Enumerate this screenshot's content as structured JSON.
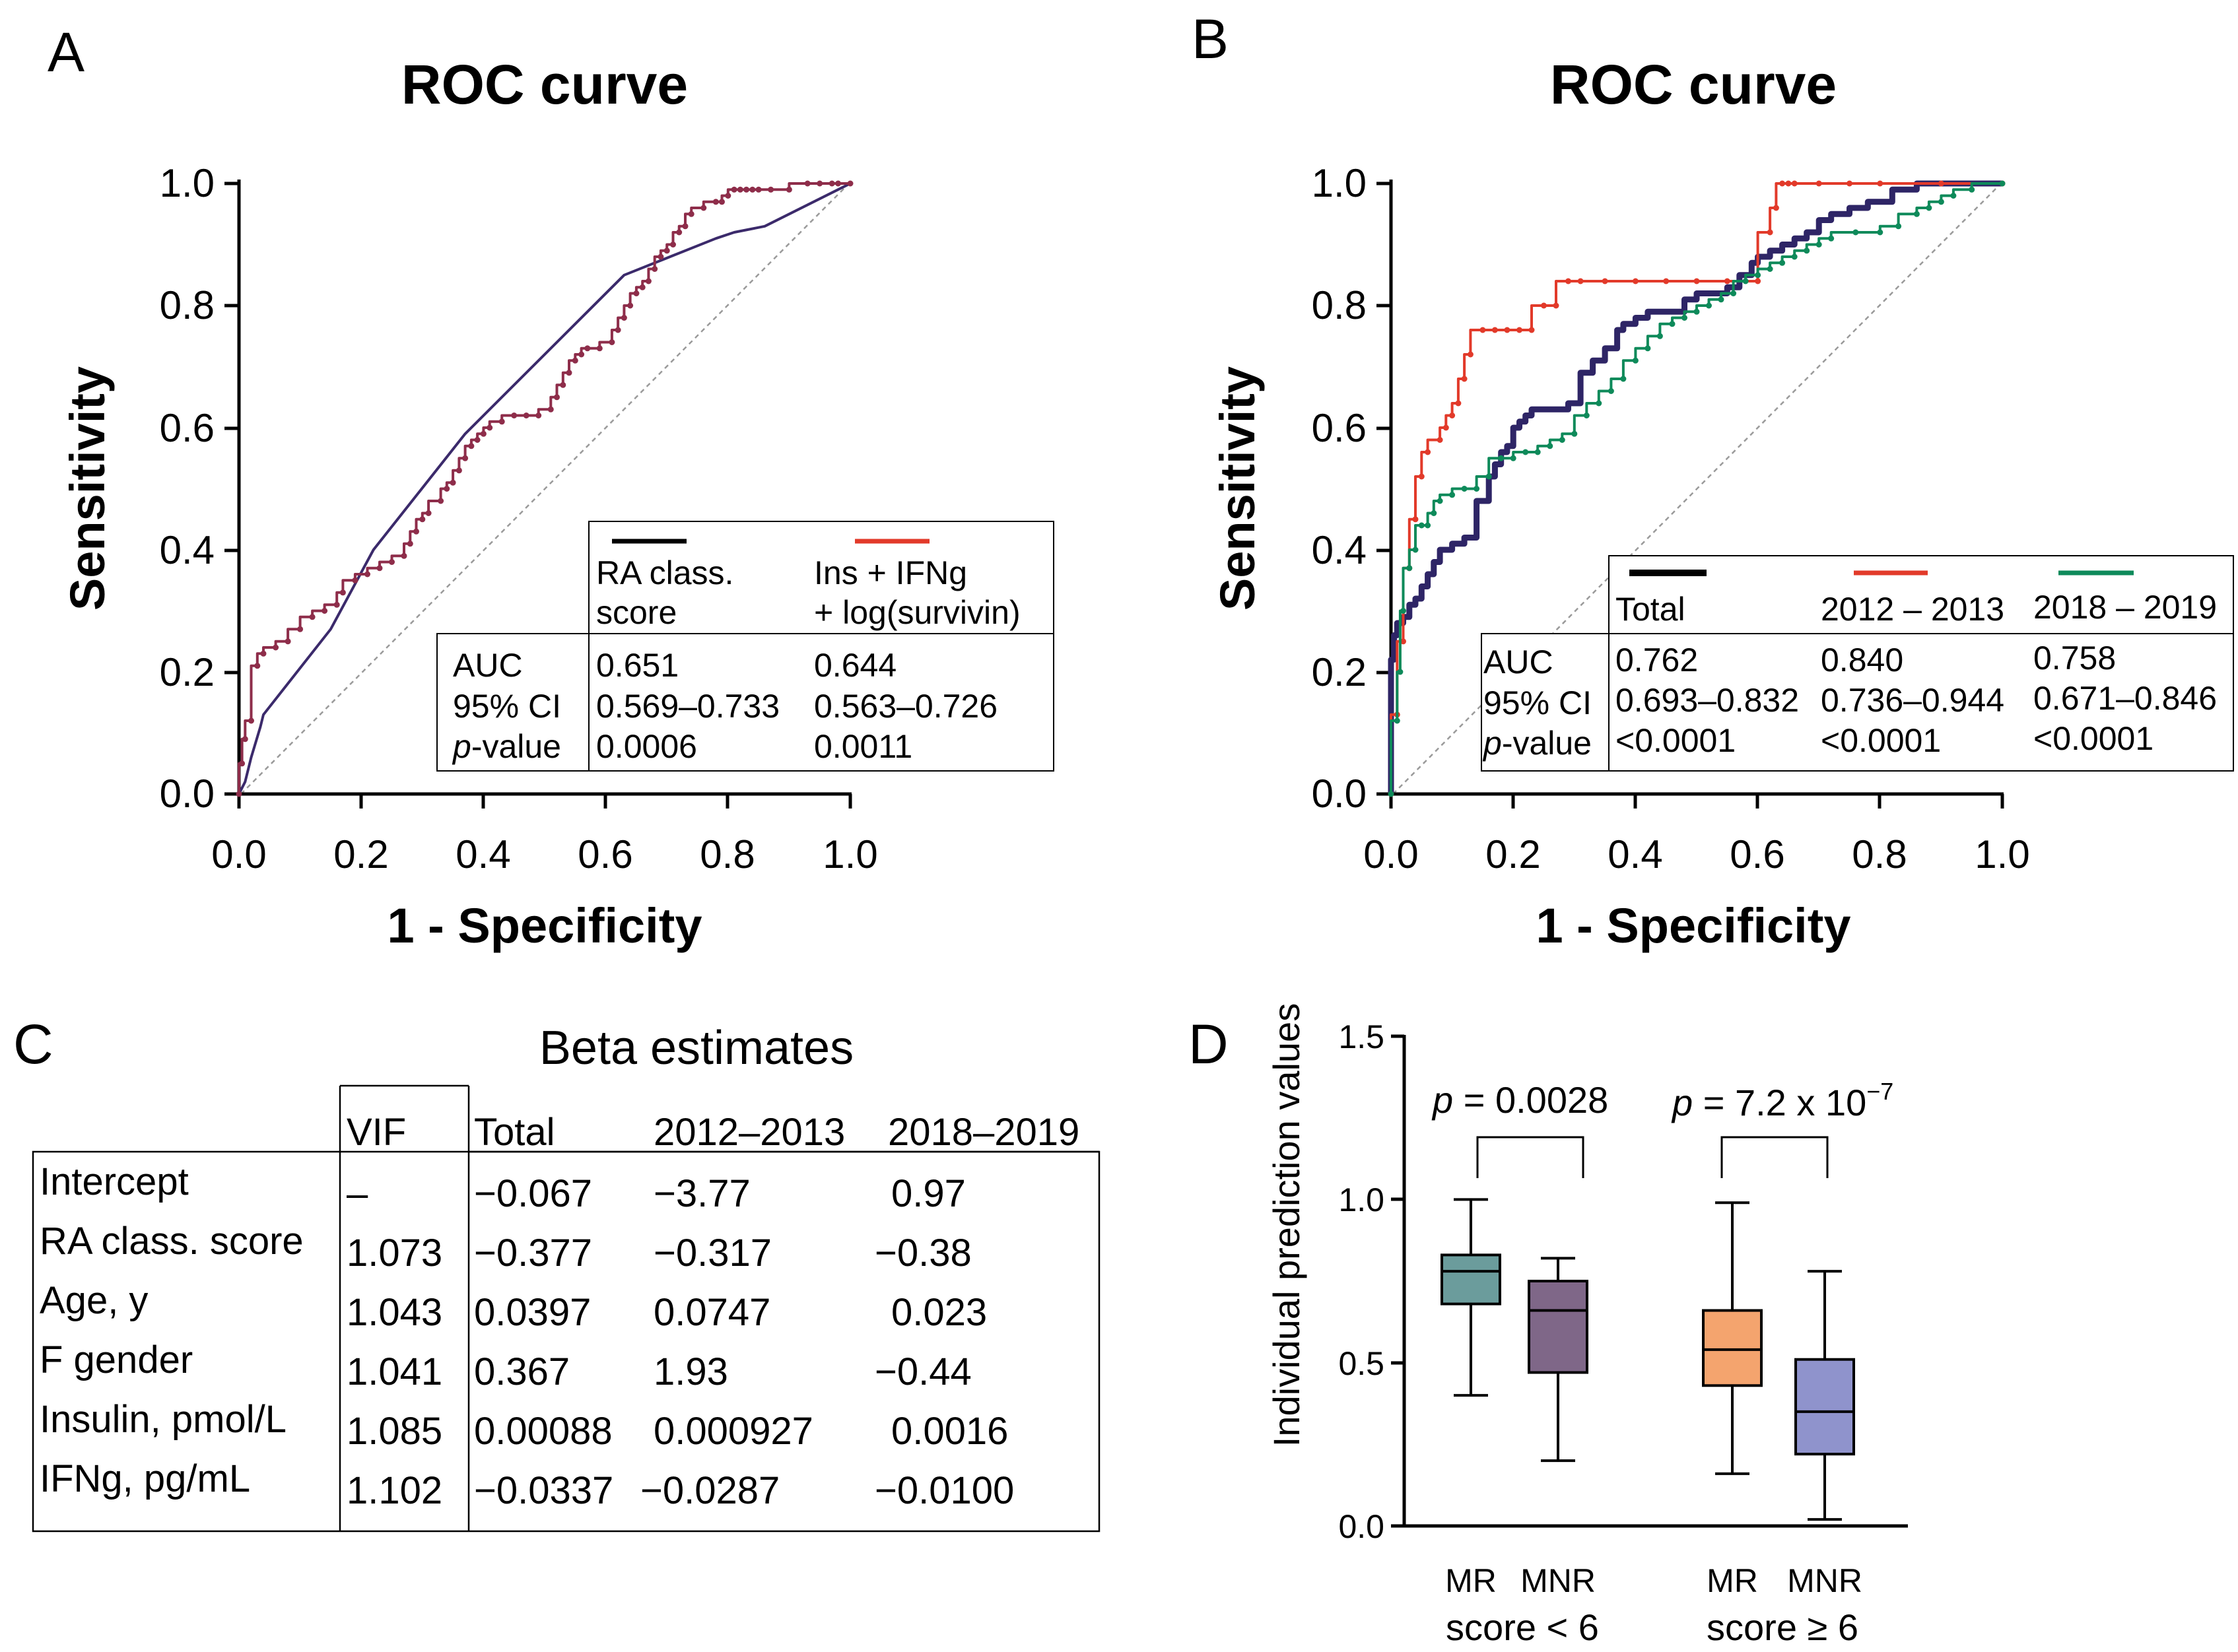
{
  "panels": {
    "A": {
      "letter": "A"
    },
    "B": {
      "letter": "B"
    },
    "C": {
      "letter": "C"
    },
    "D": {
      "letter": "D"
    }
  },
  "chart_data": [
    {
      "id": "A",
      "type": "line",
      "title": "ROC curve",
      "xlabel": "1 - Specificity",
      "ylabel": "Sensitivity",
      "xlim": [
        0,
        1
      ],
      "ylim": [
        0,
        1
      ],
      "xticks": [
        "0.0",
        "0.2",
        "0.4",
        "0.6",
        "0.8",
        "1.0"
      ],
      "yticks": [
        "0.0",
        "0.2",
        "0.4",
        "0.6",
        "0.8",
        "1.0"
      ],
      "series": [
        {
          "name": "RA class. score",
          "color": "#3b2a6b",
          "width": 4,
          "step": false,
          "markers": false,
          "x": [
            0,
            0.01,
            0.02,
            0.035,
            0.04,
            0.15,
            0.22,
            0.37,
            0.63,
            0.78,
            0.81,
            0.86,
            1.0
          ],
          "y": [
            0,
            0.02,
            0.06,
            0.11,
            0.13,
            0.27,
            0.4,
            0.59,
            0.85,
            0.91,
            0.92,
            0.93,
            1.0
          ]
        },
        {
          "name": "Ins + IFNg + log(survivin)",
          "color": "#8e2d4a",
          "width": 4,
          "step": true,
          "markers": true,
          "x": [
            0,
            0.005,
            0.01,
            0.02,
            0.03,
            0.04,
            0.06,
            0.08,
            0.1,
            0.12,
            0.14,
            0.16,
            0.17,
            0.19,
            0.21,
            0.23,
            0.25,
            0.27,
            0.28,
            0.29,
            0.3,
            0.31,
            0.33,
            0.34,
            0.35,
            0.36,
            0.37,
            0.38,
            0.39,
            0.4,
            0.41,
            0.43,
            0.45,
            0.47,
            0.49,
            0.51,
            0.52,
            0.53,
            0.54,
            0.55,
            0.56,
            0.57,
            0.59,
            0.61,
            0.62,
            0.63,
            0.64,
            0.65,
            0.66,
            0.67,
            0.68,
            0.69,
            0.7,
            0.71,
            0.72,
            0.73,
            0.74,
            0.76,
            0.78,
            0.79,
            0.8,
            0.81,
            0.82,
            0.83,
            0.84,
            0.85,
            0.87,
            0.9,
            0.93,
            0.95,
            0.97,
            0.98,
            1.0
          ],
          "y": [
            0,
            0.05,
            0.09,
            0.12,
            0.21,
            0.23,
            0.24,
            0.25,
            0.27,
            0.29,
            0.3,
            0.31,
            0.33,
            0.35,
            0.36,
            0.37,
            0.38,
            0.39,
            0.41,
            0.43,
            0.45,
            0.46,
            0.48,
            0.5,
            0.51,
            0.53,
            0.55,
            0.57,
            0.58,
            0.59,
            0.6,
            0.61,
            0.62,
            0.62,
            0.62,
            0.63,
            0.65,
            0.67,
            0.69,
            0.71,
            0.72,
            0.73,
            0.73,
            0.74,
            0.76,
            0.78,
            0.8,
            0.82,
            0.83,
            0.84,
            0.86,
            0.88,
            0.89,
            0.9,
            0.92,
            0.93,
            0.95,
            0.96,
            0.97,
            0.97,
            0.98,
            0.99,
            0.99,
            0.99,
            0.99,
            0.99,
            0.99,
            0.99,
            1.0,
            1.0,
            1.0,
            1.0,
            1.0
          ]
        }
      ],
      "diagonal": true,
      "legend": {
        "position": "bottom-right",
        "headers": [
          [
            "RA class.",
            "score"
          ],
          [
            "Ins + IFNg",
            "+ log(survivin)"
          ]
        ],
        "row_labels": [
          "AUC",
          "95% CI",
          "p-value"
        ],
        "rows": [
          [
            "0.651",
            "0.644"
          ],
          [
            "0.569–0.733",
            "0.563–0.726"
          ],
          [
            "0.0006",
            "0.0011"
          ]
        ],
        "line_colors": [
          "#000000",
          "#e23a2a"
        ]
      }
    },
    {
      "id": "B",
      "type": "line",
      "title": "ROC curve",
      "xlabel": "1 - Specificity",
      "ylabel": "Sensitivity",
      "xlim": [
        0,
        1
      ],
      "ylim": [
        0,
        1
      ],
      "xticks": [
        "0.0",
        "0.2",
        "0.4",
        "0.6",
        "0.8",
        "1.0"
      ],
      "yticks": [
        "0.0",
        "0.2",
        "0.4",
        "0.6",
        "0.8",
        "1.0"
      ],
      "series": [
        {
          "name": "Total",
          "color": "#2e2566",
          "width": 9,
          "step": true,
          "markers": false,
          "x": [
            0,
            0.005,
            0.01,
            0.02,
            0.03,
            0.04,
            0.05,
            0.06,
            0.07,
            0.08,
            0.1,
            0.12,
            0.14,
            0.16,
            0.17,
            0.18,
            0.19,
            0.2,
            0.21,
            0.22,
            0.23,
            0.27,
            0.29,
            0.31,
            0.33,
            0.35,
            0.37,
            0.38,
            0.4,
            0.42,
            0.44,
            0.46,
            0.48,
            0.5,
            0.52,
            0.55,
            0.57,
            0.59,
            0.6,
            0.62,
            0.64,
            0.66,
            0.68,
            0.7,
            0.72,
            0.75,
            0.78,
            0.82,
            0.86,
            0.9,
            0.95,
            1.0
          ],
          "y": [
            0,
            0.22,
            0.26,
            0.28,
            0.29,
            0.31,
            0.32,
            0.34,
            0.36,
            0.38,
            0.4,
            0.41,
            0.42,
            0.48,
            0.52,
            0.54,
            0.56,
            0.57,
            0.6,
            0.61,
            0.62,
            0.63,
            0.63,
            0.64,
            0.69,
            0.71,
            0.73,
            0.76,
            0.77,
            0.78,
            0.79,
            0.79,
            0.79,
            0.81,
            0.82,
            0.82,
            0.83,
            0.85,
            0.87,
            0.88,
            0.89,
            0.9,
            0.91,
            0.92,
            0.94,
            0.95,
            0.96,
            0.97,
            0.99,
            1.0,
            1.0,
            1.0
          ]
        },
        {
          "name": "2012 – 2013",
          "color": "#e23a2a",
          "width": 4,
          "step": true,
          "markers": true,
          "x": [
            0,
            0.01,
            0.02,
            0.03,
            0.04,
            0.05,
            0.06,
            0.08,
            0.09,
            0.1,
            0.11,
            0.12,
            0.13,
            0.15,
            0.17,
            0.19,
            0.21,
            0.23,
            0.25,
            0.27,
            0.29,
            0.31,
            0.35,
            0.4,
            0.45,
            0.5,
            0.55,
            0.6,
            0.62,
            0.63,
            0.64,
            0.65,
            0.66,
            0.7,
            0.75,
            0.8,
            0.9,
            1.0
          ],
          "y": [
            0,
            0.13,
            0.25,
            0.37,
            0.45,
            0.52,
            0.56,
            0.58,
            0.6,
            0.62,
            0.64,
            0.68,
            0.72,
            0.76,
            0.76,
            0.76,
            0.76,
            0.76,
            0.8,
            0.8,
            0.84,
            0.84,
            0.84,
            0.84,
            0.84,
            0.84,
            0.84,
            0.84,
            0.92,
            0.96,
            1.0,
            1.0,
            1.0,
            1.0,
            1.0,
            1.0,
            1.0,
            1.0
          ]
        },
        {
          "name": "2018 – 2019",
          "color": "#0e8a5a",
          "width": 4,
          "step": true,
          "markers": true,
          "x": [
            0,
            0.01,
            0.015,
            0.02,
            0.03,
            0.04,
            0.05,
            0.06,
            0.07,
            0.08,
            0.1,
            0.12,
            0.14,
            0.16,
            0.18,
            0.2,
            0.22,
            0.24,
            0.26,
            0.28,
            0.3,
            0.32,
            0.34,
            0.36,
            0.38,
            0.4,
            0.42,
            0.44,
            0.46,
            0.48,
            0.5,
            0.52,
            0.54,
            0.56,
            0.58,
            0.6,
            0.62,
            0.64,
            0.66,
            0.68,
            0.7,
            0.72,
            0.76,
            0.8,
            0.83,
            0.86,
            0.88,
            0.9,
            0.92,
            0.95,
            1.0
          ],
          "y": [
            0,
            0.12,
            0.2,
            0.3,
            0.37,
            0.4,
            0.44,
            0.44,
            0.46,
            0.48,
            0.49,
            0.5,
            0.5,
            0.52,
            0.55,
            0.55,
            0.56,
            0.56,
            0.57,
            0.58,
            0.59,
            0.62,
            0.64,
            0.66,
            0.68,
            0.71,
            0.73,
            0.75,
            0.77,
            0.78,
            0.79,
            0.8,
            0.81,
            0.82,
            0.84,
            0.85,
            0.86,
            0.87,
            0.88,
            0.89,
            0.9,
            0.91,
            0.92,
            0.92,
            0.93,
            0.95,
            0.96,
            0.97,
            0.98,
            0.99,
            1.0
          ]
        }
      ],
      "diagonal": true,
      "legend": {
        "position": "bottom-right",
        "headers": [
          "Total",
          "2012 – 2013",
          "2018 – 2019"
        ],
        "row_labels": [
          "AUC",
          "95% CI",
          "p-value"
        ],
        "rows": [
          [
            "0.762",
            "0.840",
            "0.758"
          ],
          [
            "0.693–0.832",
            "0.736–0.944",
            "0.671–0.846"
          ],
          [
            "<0.0001",
            "<0.0001",
            "<0.0001"
          ]
        ],
        "line_colors": [
          "#000000",
          "#e23a2a",
          "#0e8a5a"
        ]
      }
    },
    {
      "id": "C",
      "type": "table",
      "title": "Beta estimates",
      "columns": [
        "VIF",
        "Total",
        "2012–2013",
        "2018–2019"
      ],
      "rows": [
        {
          "label": "Intercept",
          "values": [
            "–",
            "−0.067",
            "−3.77",
            "0.97"
          ]
        },
        {
          "label": "RA class. score",
          "values": [
            "1.073",
            "−0.377",
            "−0.317",
            "−0.38"
          ]
        },
        {
          "label": "Age, y",
          "values": [
            "1.043",
            "0.0397",
            "0.0747",
            "0.023"
          ]
        },
        {
          "label": "F gender",
          "values": [
            "1.041",
            "0.367",
            "1.93",
            "−0.44"
          ]
        },
        {
          "label": "Insulin, pmol/L",
          "values": [
            "1.085",
            "0.00088",
            "0.000927",
            "0.0016"
          ]
        },
        {
          "label": "IFNg, pg/mL",
          "values": [
            "1.102",
            "−0.0337",
            "−0.0287",
            "−0.0100"
          ]
        }
      ]
    },
    {
      "id": "D",
      "type": "box",
      "ylabel": "Individual prediction values",
      "ylim": [
        0,
        1.5
      ],
      "yticks": [
        "0.0",
        "0.5",
        "1.0",
        "1.5"
      ],
      "boxes": [
        {
          "label": "MR",
          "group": "score < 6",
          "color": "#6b9c9c",
          "min": 0.4,
          "q1": 0.68,
          "median": 0.78,
          "q3": 0.83,
          "max": 1.0
        },
        {
          "label": "MNR",
          "group": "score < 6",
          "color": "#7f6788",
          "min": 0.2,
          "q1": 0.47,
          "median": 0.66,
          "q3": 0.75,
          "max": 0.82
        },
        {
          "label": "MR",
          "group": "score ≥ 6",
          "color": "#f4a46e",
          "min": 0.16,
          "q1": 0.43,
          "median": 0.54,
          "q3": 0.66,
          "max": 0.99
        },
        {
          "label": "MNR",
          "group": "score ≥ 6",
          "color": "#8f93cc",
          "min": 0.02,
          "q1": 0.22,
          "median": 0.35,
          "q3": 0.51,
          "max": 0.78
        }
      ],
      "groups": [
        "score < 6",
        "score ≥ 6"
      ],
      "comparisons": [
        {
          "text_prefix": "p",
          "text_value": " = 0.0028",
          "between": [
            0,
            1
          ]
        },
        {
          "text_prefix": "p",
          "text_value": " = 7.2 x 10",
          "exponent": "−7",
          "between": [
            2,
            3
          ]
        }
      ]
    }
  ]
}
